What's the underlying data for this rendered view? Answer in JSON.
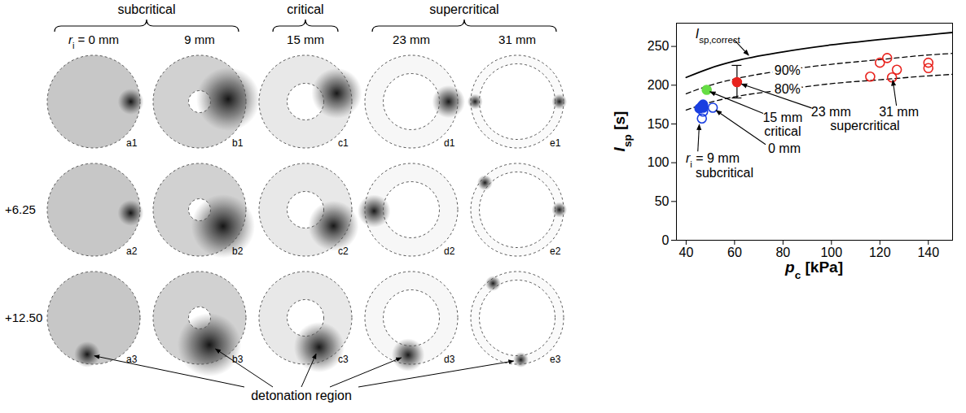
{
  "figure": {
    "ri_label": {
      "main": "r",
      "sub": "i",
      "after": " = "
    },
    "columns": [
      {
        "label": "0 mm",
        "group": "subcritical"
      },
      {
        "label": "9 mm",
        "group": "subcritical"
      },
      {
        "label": "15 mm",
        "group": "critical"
      },
      {
        "label": "23 mm",
        "group": "supercritical"
      },
      {
        "label": "31 mm",
        "group": "supercritical"
      }
    ],
    "row_labels": [
      null,
      "+6.25",
      "+12.50"
    ],
    "panels": [
      [
        "a1",
        "b1",
        "c1",
        "d1",
        "e1"
      ],
      [
        "a2",
        "b2",
        "c2",
        "d2",
        "e2"
      ],
      [
        "a3",
        "b3",
        "c3",
        "d3",
        "e3"
      ]
    ],
    "pointer_label": "detonation region"
  },
  "chart_data": {
    "type": "scatter",
    "xlabel": {
      "main": "p",
      "sub": "c",
      "after": " [kPa]"
    },
    "ylabel": {
      "main": "I",
      "sub": "sp",
      "after": " [s]"
    },
    "xlim": [
      36,
      150
    ],
    "ylim": [
      0,
      280
    ],
    "xticks": [
      40,
      60,
      80,
      100,
      120,
      140
    ],
    "yticks": [
      0,
      50,
      100,
      150,
      200,
      250
    ],
    "grid": false,
    "series": [
      {
        "type": "line",
        "line_style": "solid",
        "color": "#000000",
        "x": [
          40,
          50,
          60,
          80,
          100,
          120,
          140,
          150
        ],
        "values": [
          210,
          222,
          231,
          243,
          252,
          259,
          265,
          268
        ],
        "annotation": {
          "lines": [
            {
              "main": "I",
              "sub": "sp,correct"
            }
          ]
        }
      },
      {
        "type": "line",
        "line_style": "dashed",
        "color": "#000000",
        "x": [
          40,
          50,
          60,
          80,
          100,
          120,
          140,
          150
        ],
        "values": [
          189,
          200,
          208,
          219,
          227,
          233,
          239,
          241
        ],
        "annotation": {
          "lines": [
            "90%"
          ]
        }
      },
      {
        "type": "line",
        "line_style": "dashed",
        "color": "#000000",
        "x": [
          40,
          50,
          60,
          80,
          100,
          120,
          140,
          150
        ],
        "values": [
          168,
          178,
          185,
          194,
          202,
          207,
          212,
          214
        ],
        "annotation": {
          "lines": [
            "80%"
          ]
        }
      },
      {
        "type": "scatter",
        "marker": "open_circle",
        "color": "#1a3fe0",
        "x": [
          46.5,
          47,
          51
        ],
        "values": [
          157,
          166,
          171
        ],
        "annotation": {
          "lines": [
            "0 mm"
          ]
        }
      },
      {
        "type": "scatter",
        "marker": "circle",
        "color": "#1a3fe0",
        "x": [
          45.5,
          46.5,
          47,
          47
        ],
        "values": [
          170,
          173,
          175,
          171
        ],
        "annotation": {
          "lines": [
            {
              "main": "r",
              "sub": "i",
              "after": " = 9 mm"
            },
            "subcritical"
          ]
        }
      },
      {
        "type": "scatter",
        "marker": "circle",
        "color": "#66dd44",
        "x": [
          48.5
        ],
        "values": [
          194
        ],
        "annotation": {
          "lines": [
            "15 mm",
            "critical"
          ]
        }
      },
      {
        "type": "scatter",
        "marker": "circle",
        "color": "#e8231e",
        "x": [
          61
        ],
        "values": [
          204
        ],
        "error_low": [
          183
        ],
        "error_high": [
          225
        ],
        "annotation": {
          "lines": [
            "23 mm"
          ]
        }
      },
      {
        "type": "scatter",
        "marker": "open_circle",
        "color": "#e8231e",
        "x": [
          116,
          120,
          123,
          125,
          127,
          140,
          140
        ],
        "values": [
          211,
          229,
          235,
          210,
          220,
          229,
          222
        ],
        "annotation": {
          "lines": [
            "31 mm"
          ]
        }
      }
    ],
    "annotations": [
      "supercritical"
    ]
  }
}
